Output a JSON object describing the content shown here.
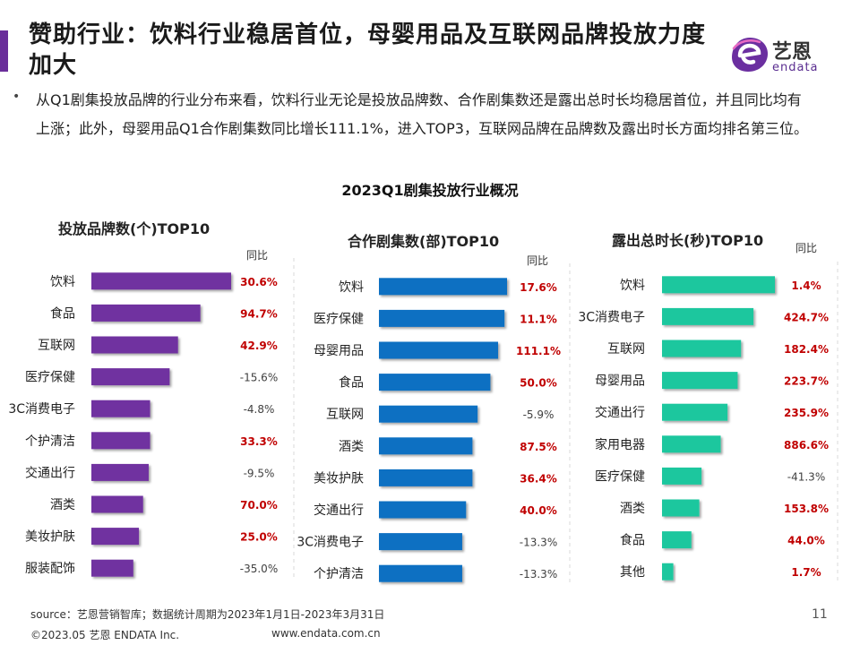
{
  "header": {
    "title": "赞助行业：饮料行业稳居首位，母婴用品及互联网品牌投放力度加大",
    "logo_cn": "艺恩",
    "logo_en": "endata"
  },
  "bullet": {
    "marker": "•",
    "text": "从Q1剧集投放品牌的行业分布来看，饮料行业无论是投放品牌数、合作剧集数还是露出总时长均稳居首位，并且同比均有上涨；此外，母婴用品Q1合作剧集数同比增长111.1%，进入TOP3，互联网品牌在品牌数及露出时长方面均排名第三位。"
  },
  "chart_main_title": "2023Q1剧集投放行业概况",
  "colors": {
    "purple": "#7030a0",
    "blue": "#0b6fc2",
    "teal": "#1ec79e",
    "positive": "#c00000",
    "negative": "#404040",
    "accent_bar": "#6a2e9a"
  },
  "chart_data": [
    {
      "type": "bar",
      "orientation": "horizontal",
      "title": "投放品牌数(个)TOP10",
      "yoy_header": "同比",
      "categories": [
        "饮料",
        "食品",
        "互联网",
        "医疗保健",
        "3C消费电子",
        "个护清洁",
        "交通出行",
        "酒类",
        "美妆护肤",
        "服装配饰"
      ],
      "values": [
        100,
        78,
        62,
        56,
        42,
        42,
        41,
        37,
        34,
        30
      ],
      "yoy": [
        "30.6%",
        "94.7%",
        "42.9%",
        "-15.6%",
        "-4.8%",
        "33.3%",
        "-9.5%",
        "70.0%",
        "25.0%",
        "-35.0%"
      ],
      "grid": false
    },
    {
      "type": "bar",
      "orientation": "horizontal",
      "title": "合作剧集数(部)TOP10",
      "yoy_header": "同比",
      "categories": [
        "饮料",
        "医疗保健",
        "母婴用品",
        "食品",
        "互联网",
        "酒类",
        "美妆护肤",
        "交通出行",
        "3C消费电子",
        "个护清洁"
      ],
      "values": [
        100,
        98,
        93,
        87,
        77,
        73,
        73,
        68,
        65,
        65
      ],
      "yoy": [
        "17.6%",
        "11.1%",
        "111.1%",
        "50.0%",
        "-5.9%",
        "87.5%",
        "36.4%",
        "40.0%",
        "-13.3%",
        "-13.3%"
      ],
      "grid": false
    },
    {
      "type": "bar",
      "orientation": "horizontal",
      "title": "露出总时长(秒)TOP10",
      "yoy_header": "同比",
      "categories": [
        "饮料",
        "3C消费电子",
        "互联网",
        "母婴用品",
        "交通出行",
        "家用电器",
        "医疗保健",
        "酒类",
        "食品",
        "其他"
      ],
      "values": [
        100,
        81,
        70,
        67,
        58,
        52,
        35,
        33,
        26,
        10
      ],
      "yoy": [
        "1.4%",
        "424.7%",
        "182.4%",
        "223.7%",
        "235.9%",
        "886.6%",
        "-41.3%",
        "153.8%",
        "44.0%",
        "1.7%"
      ],
      "grid": false
    }
  ],
  "footer": {
    "source": "source：艺恩营销智库；数据统计周期为2023年1月1日-2023年3月31日",
    "page": "11",
    "copyright": "©2023.05 艺恩 ENDATA Inc.",
    "website": "www.endata.com.cn"
  }
}
